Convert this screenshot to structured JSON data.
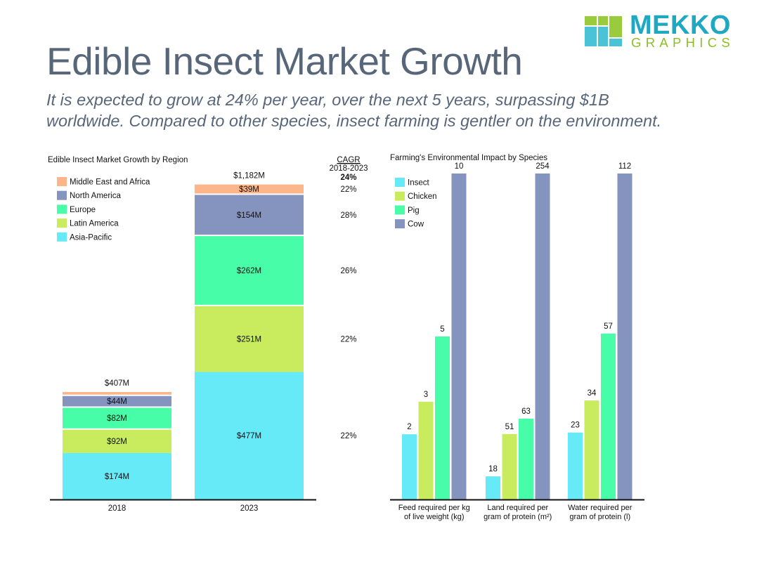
{
  "header": {
    "title": "Edible Insect Market Growth",
    "subtitle_line1": "It is expected to grow at 24% per year, over the next 5 years, surpassing $1B",
    "subtitle_line2": "worldwide. Compared to other species, insect farming is gentler on the environment."
  },
  "logo": {
    "word1": "MEKKO",
    "word2": "GRAPHICS",
    "colors": {
      "blue": "#4bc3d6",
      "green": "#9acb3c",
      "text_blue": "#1ea8c2",
      "text_green": "#8cbf26"
    }
  },
  "chart_data": [
    {
      "type": "bar",
      "stacked": true,
      "title": "Edible Insect Market Growth by Region",
      "categories": [
        "2018",
        "2023"
      ],
      "totals_labels": [
        "$407M",
        "$1,182M"
      ],
      "totals": [
        407,
        1182
      ],
      "unit": "$M",
      "series": [
        {
          "name": "Asia-Pacific",
          "color": "#66eaf8",
          "values": [
            174,
            477
          ],
          "labels": [
            "$174M",
            "$477M"
          ],
          "cagr": "22%"
        },
        {
          "name": "Latin America",
          "color": "#c8ec5e",
          "values": [
            92,
            251
          ],
          "labels": [
            "$92M",
            "$251M"
          ],
          "cagr": "22%"
        },
        {
          "name": "Europe",
          "color": "#48fda8",
          "values": [
            82,
            262
          ],
          "labels": [
            "$82M",
            "$262M"
          ],
          "cagr": "26%"
        },
        {
          "name": "North America",
          "color": "#8594bf",
          "values": [
            44,
            154
          ],
          "labels": [
            "$44M",
            "$154M"
          ],
          "cagr": "28%"
        },
        {
          "name": "Middle East and Africa",
          "color": "#fdb68a",
          "values": [
            15,
            39
          ],
          "labels": [
            "",
            "$39M"
          ],
          "cagr": "22%"
        }
      ],
      "cagr_header": "CAGR",
      "cagr_period": "2018-2023",
      "cagr_total": "24%",
      "legend_placement": "top-left",
      "legend_order": [
        "Middle East and Africa",
        "North America",
        "Europe",
        "Latin America",
        "Asia-Pacific"
      ],
      "ylim": [
        0,
        1182
      ],
      "grid": false
    },
    {
      "type": "bar",
      "grouped": true,
      "title": "Farming's Environmental Impact by Species",
      "categories": [
        [
          "Feed required per kg",
          "of live weight (kg)"
        ],
        [
          "Land required per",
          "gram of protein (m²)"
        ],
        [
          "Water required per",
          "gram of protein (l)"
        ]
      ],
      "series": [
        {
          "name": "Insect",
          "color": "#66eaf8",
          "values": [
            2,
            18,
            23
          ]
        },
        {
          "name": "Chicken",
          "color": "#c8ec5e",
          "values": [
            3,
            51,
            34
          ]
        },
        {
          "name": "Pig",
          "color": "#48fda8",
          "values": [
            5,
            63,
            57
          ]
        },
        {
          "name": "Cow",
          "color": "#8594bf",
          "values": [
            10,
            254,
            112
          ]
        }
      ],
      "scaling": "each category normalized to its maximum",
      "legend_placement": "top-left",
      "grid": false
    }
  ]
}
